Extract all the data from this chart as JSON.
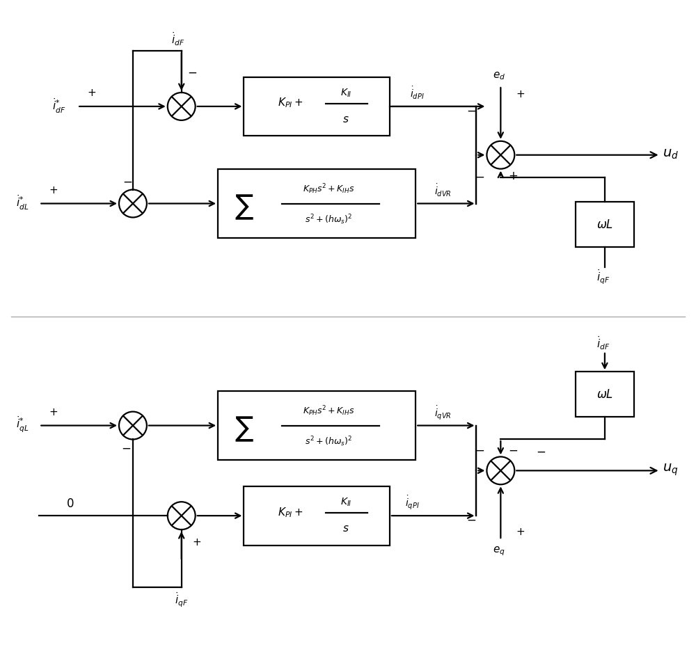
{
  "bg_color": "#ffffff",
  "line_color": "#000000",
  "fig_width": 10.0,
  "fig_height": 9.28,
  "lw": 1.6,
  "r_sum": 0.2
}
